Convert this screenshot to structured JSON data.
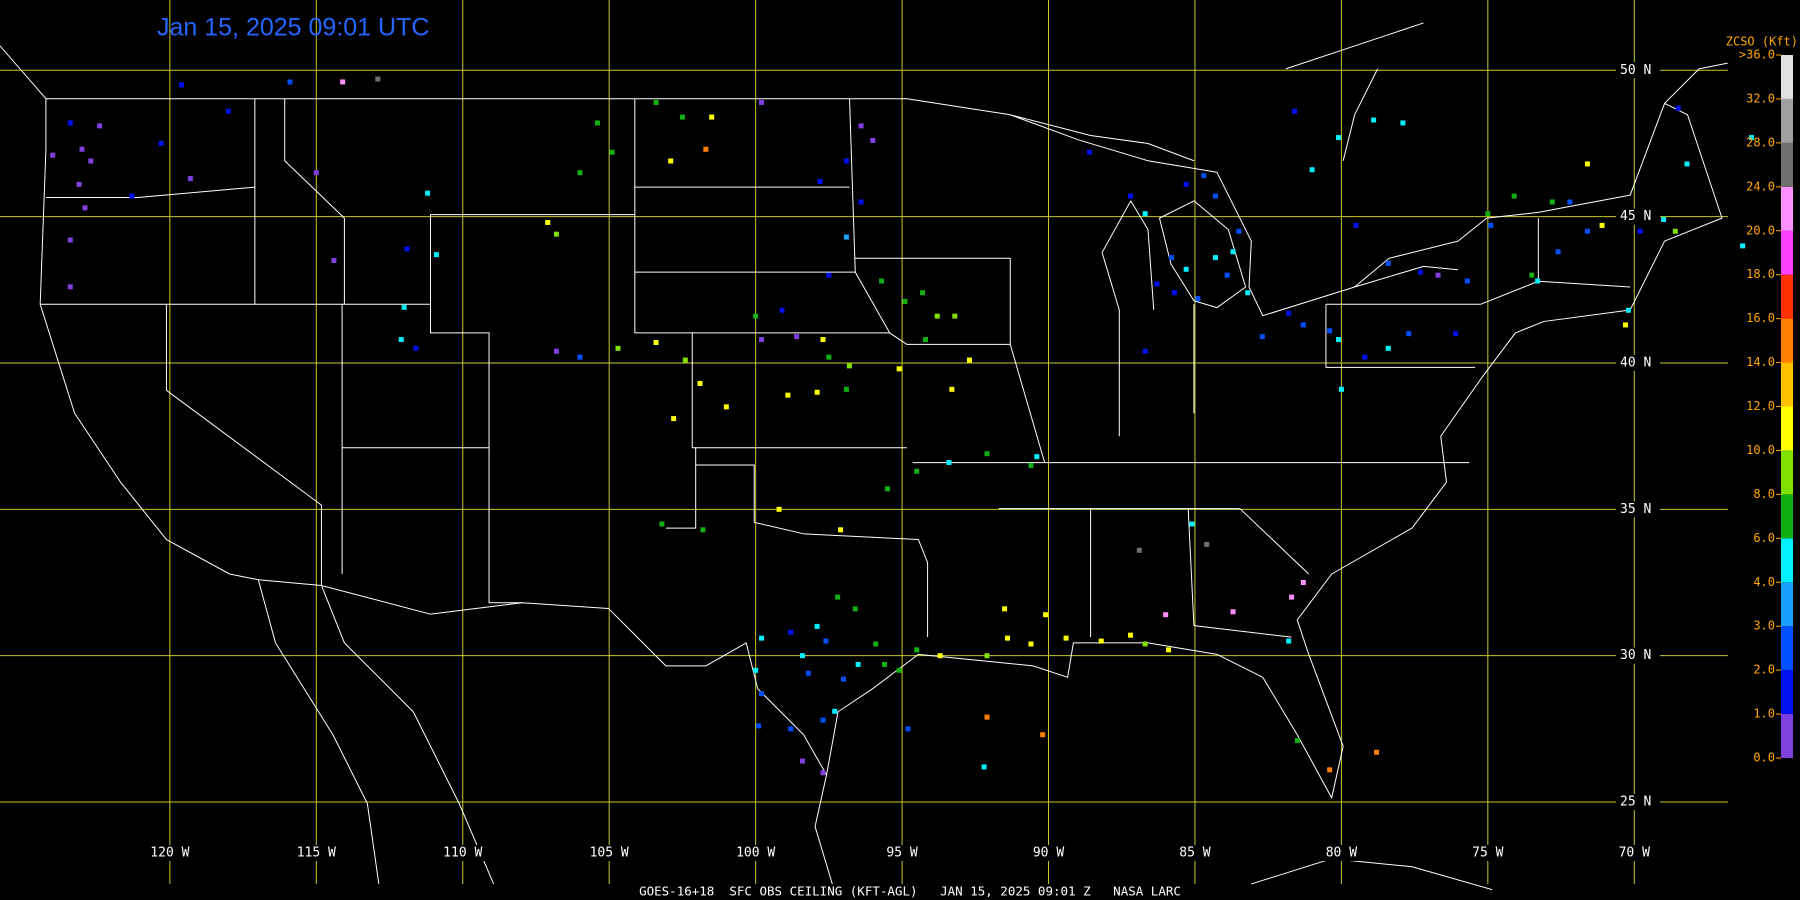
{
  "chart_data": {
    "type": "map",
    "title": "Jan 15, 2025 09:01 UTC",
    "footer": "GOES-16+18  SFC OBS CEILING (KFT-AGL)   JAN 15, 2025 09:01 Z   NASA LARC",
    "xlim": [
      -125.8,
      -66.8
    ],
    "ylim": [
      22.2,
      52.4
    ],
    "grid": true,
    "grid_color": "#c8c828",
    "xticks": [
      {
        "value": -120,
        "label": "120 W"
      },
      {
        "value": -115,
        "label": "115 W"
      },
      {
        "value": -110,
        "label": "110 W"
      },
      {
        "value": -105,
        "label": "105 W"
      },
      {
        "value": -100,
        "label": "100 W"
      },
      {
        "value": -95,
        "label": "95 W"
      },
      {
        "value": -90,
        "label": "90 W"
      },
      {
        "value": -85,
        "label": "85 W"
      },
      {
        "value": -80,
        "label": "80 W"
      },
      {
        "value": -75,
        "label": "75 W"
      },
      {
        "value": -70,
        "label": "70 W"
      }
    ],
    "yticks": [
      {
        "value": 25,
        "label": "25 N"
      },
      {
        "value": 30,
        "label": "30 N"
      },
      {
        "value": 35,
        "label": "35 N"
      },
      {
        "value": 40,
        "label": "40 N"
      },
      {
        "value": 45,
        "label": "45 N"
      },
      {
        "value": 50,
        "label": "50 N"
      }
    ],
    "colorbar": {
      "title": "ZCSO (Kft)",
      "ticks": [
        {
          "value": 0,
          "label": "0.0"
        },
        {
          "value": 1,
          "label": "1.0"
        },
        {
          "value": 2,
          "label": "2.0"
        },
        {
          "value": 3,
          "label": "3.0"
        },
        {
          "value": 4,
          "label": "4.0"
        },
        {
          "value": 6,
          "label": "6.0"
        },
        {
          "value": 8,
          "label": "8.0"
        },
        {
          "value": 10,
          "label": "10.0"
        },
        {
          "value": 12,
          "label": "12.0"
        },
        {
          "value": 14,
          "label": "14.0"
        },
        {
          "value": 16,
          "label": "16.0"
        },
        {
          "value": 18,
          "label": "18.0"
        },
        {
          "value": 20,
          "label": "20.0"
        },
        {
          "value": 24,
          "label": "24.0"
        },
        {
          "value": 28,
          "label": "28.0"
        },
        {
          "value": 32,
          "label": "32.0"
        },
        {
          "value": 36,
          "label": ">36.0"
        }
      ],
      "colors": [
        "#8040e0",
        "#0010f0",
        "#0050ff",
        "#1aa0ff",
        "#00f0ff",
        "#10b010",
        "#80e000",
        "#ffff00",
        "#ffc000",
        "#ff8000",
        "#ff3000",
        "#ff40ff",
        "#ff90ff",
        "#707070",
        "#a0a0a0",
        "#e0e0e0"
      ]
    },
    "stations": {
      "x": [
        -123.0,
        -122.7,
        -123.1,
        -122.9,
        -123.4,
        -123.4,
        -122.4,
        -124.0,
        -123.4,
        -120.3,
        -121.3,
        -119.3,
        -118.0,
        -115.9,
        -119.6,
        -114.1,
        -112.9,
        -115.0,
        -114.4,
        -111.2,
        -111.9,
        -110.9,
        -112.0,
        -112.1,
        -111.6,
        -106.8,
        -106.0,
        -104.7,
        -103.4,
        -102.4,
        -101.9,
        -102.8,
        -101.0,
        -107.1,
        -106.8,
        -105.4,
        -104.9,
        -106.0,
        -103.4,
        -102.5,
        -101.5,
        -101.7,
        -102.9,
        -99.8,
        -96.4,
        -96.0,
        -96.9,
        -97.8,
        -96.4,
        -97.5,
        -96.9,
        -100.0,
        -99.1,
        -98.6,
        -97.7,
        -99.8,
        -97.5,
        -96.8,
        -96.9,
        -98.9,
        -97.9,
        -95.7,
        -94.3,
        -93.8,
        -93.2,
        -94.9,
        -94.2,
        -95.1,
        -93.3,
        -92.7,
        -94.5,
        -92.1,
        -93.4,
        -90.6,
        -90.4,
        -95.5,
        -99.2,
        -97.1,
        -101.8,
        -103.2,
        -99.8,
        -98.8,
        -97.9,
        -97.6,
        -98.4,
        -96.5,
        -97.0,
        -98.2,
        -100.0,
        -99.8,
        -99.9,
        -98.8,
        -97.7,
        -97.3,
        -98.4,
        -97.7,
        -95.1,
        -95.6,
        -94.5,
        -96.6,
        -97.2,
        -95.9,
        -94.8,
        -93.7,
        -92.1,
        -91.4,
        -90.6,
        -89.4,
        -88.2,
        -87.2,
        -86.7,
        -85.9,
        -91.5,
        -90.1,
        -92.1,
        -90.2,
        -92.2,
        -86.9,
        -84.6,
        -85.1,
        -86.0,
        -83.7,
        -81.8,
        -81.7,
        -81.3,
        -80.4,
        -78.8,
        -81.5,
        -88.6,
        -87.2,
        -86.7,
        -85.3,
        -84.7,
        -84.3,
        -85.8,
        -85.3,
        -84.9,
        -84.3,
        -83.7,
        -83.2,
        -85.7,
        -86.3,
        -83.9,
        -83.5,
        -86.7,
        -82.7,
        -81.8,
        -81.3,
        -80.4,
        -80.1,
        -79.2,
        -78.4,
        -77.7,
        -76.7,
        -77.3,
        -76.1,
        -75.7,
        -80.0,
        -79.5,
        -78.4,
        -78.9,
        -77.9,
        -80.1,
        -81.6,
        -81.0,
        -73.3,
        -73.5,
        -72.8,
        -72.2,
        -71.6,
        -71.1,
        -69.8,
        -68.6,
        -69.0,
        -68.2,
        -66.0,
        -66.3,
        -70.2,
        -70.3,
        -72.6,
        -74.1,
        -74.9,
        -71.6,
        -68.5,
        -75.0
      ],
      "y": [
        47.3,
        46.9,
        46.1,
        45.3,
        44.2,
        42.6,
        48.1,
        47.1,
        48.2,
        47.5,
        45.7,
        46.3,
        48.6,
        49.6,
        49.5,
        49.6,
        49.7,
        46.5,
        43.5,
        45.8,
        43.9,
        43.7,
        41.9,
        40.8,
        40.5,
        40.4,
        40.2,
        40.5,
        40.7,
        40.1,
        39.3,
        38.1,
        38.5,
        44.8,
        44.4,
        48.2,
        47.2,
        46.5,
        48.9,
        48.4,
        48.4,
        47.3,
        46.9,
        48.9,
        48.1,
        47.6,
        46.9,
        46.2,
        45.5,
        43.0,
        44.3,
        41.6,
        41.8,
        40.9,
        40.8,
        40.8,
        40.2,
        39.9,
        39.1,
        38.9,
        39.0,
        42.8,
        42.4,
        41.6,
        41.6,
        42.1,
        40.8,
        39.8,
        39.1,
        40.1,
        36.3,
        36.9,
        36.6,
        36.5,
        36.8,
        35.7,
        35.0,
        34.3,
        34.3,
        34.5,
        30.6,
        30.8,
        31.0,
        30.5,
        30.0,
        29.7,
        29.2,
        29.4,
        29.5,
        28.7,
        27.6,
        27.5,
        27.8,
        28.1,
        26.4,
        26.0,
        29.5,
        29.7,
        30.2,
        31.6,
        32.0,
        30.4,
        27.5,
        30.0,
        30.0,
        30.6,
        30.4,
        30.6,
        30.5,
        30.7,
        30.4,
        30.2,
        31.6,
        31.4,
        27.9,
        27.3,
        26.2,
        33.6,
        33.8,
        34.5,
        31.4,
        31.5,
        30.5,
        32.0,
        32.5,
        26.1,
        26.7,
        27.1,
        47.2,
        45.7,
        45.1,
        46.1,
        46.4,
        45.7,
        43.6,
        43.2,
        42.2,
        43.6,
        43.8,
        42.4,
        42.4,
        42.7,
        43.0,
        44.5,
        40.4,
        40.9,
        41.7,
        41.3,
        41.1,
        40.8,
        40.2,
        40.5,
        41.0,
        43.0,
        43.1,
        41.0,
        42.8,
        39.1,
        44.7,
        43.4,
        48.3,
        48.2,
        47.7,
        48.6,
        46.6,
        42.8,
        43.0,
        45.5,
        45.5,
        44.5,
        44.7,
        44.5,
        44.5,
        44.9,
        46.8,
        47.7,
        44.0,
        41.8,
        41.3,
        43.8,
        45.7,
        44.7,
        46.8,
        48.7,
        45.1
      ],
      "values": [
        0.5,
        0.5,
        0.5,
        0.5,
        0.5,
        0.5,
        0.5,
        0.5,
        1.5,
        1.5,
        1.5,
        0.5,
        1.5,
        2.5,
        1.5,
        22,
        26,
        0.5,
        0.5,
        5,
        1.5,
        5,
        5,
        5,
        1.5,
        0.5,
        2.5,
        9,
        11,
        9,
        11,
        11,
        11,
        11,
        9,
        7,
        7,
        7,
        7,
        7,
        11,
        15,
        11,
        0.5,
        0.5,
        0.5,
        1.5,
        1.5,
        1.5,
        1.5,
        3.5,
        7,
        1.5,
        0.5,
        11,
        0.5,
        7,
        9,
        7,
        11,
        11,
        7,
        7,
        9,
        9,
        7,
        7,
        11,
        11,
        11,
        7,
        7,
        5,
        7,
        5,
        7,
        11,
        11,
        7,
        7,
        5,
        1.5,
        5,
        2.5,
        5,
        5,
        2.5,
        2.5,
        5,
        2.5,
        2.5,
        2.5,
        2.5,
        5,
        0.5,
        0.5,
        7,
        7,
        7,
        7,
        7,
        7,
        2.5,
        11,
        9,
        11,
        11,
        11,
        11,
        11,
        9,
        11,
        11,
        11,
        15,
        15,
        5,
        26,
        26,
        5,
        22,
        22,
        5,
        22,
        22,
        15,
        15,
        7,
        1.5,
        1.5,
        5,
        1.5,
        2.5,
        2.5,
        2.5,
        5,
        2.5,
        5,
        5,
        5,
        1.5,
        1.5,
        2.5,
        2.5,
        1.5,
        2.5,
        1.5,
        2.5,
        2.5,
        5,
        1.5,
        5,
        2.5,
        0.5,
        1.5,
        1.5,
        2.5,
        5,
        1.5,
        2.5,
        5,
        5,
        5,
        1.5,
        5,
        5,
        7,
        7,
        2.5,
        2.5,
        11,
        1.5,
        9,
        5,
        5,
        5,
        5,
        5,
        11,
        2.5,
        7,
        2.5,
        11,
        1.5,
        7
      ]
    }
  }
}
